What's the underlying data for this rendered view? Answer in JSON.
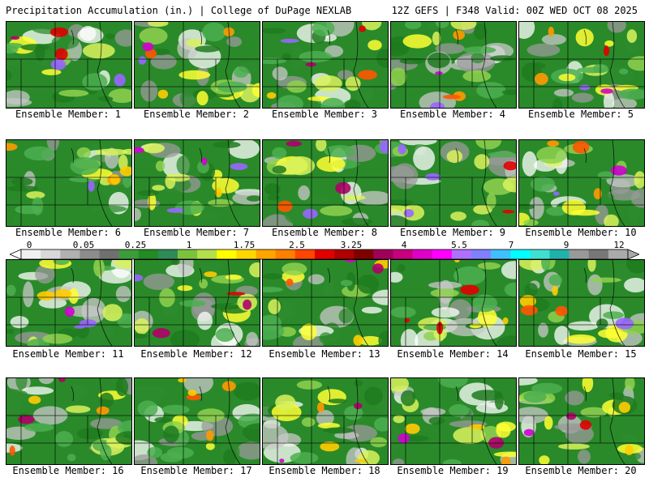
{
  "header": {
    "left": "Precipitation Accumulation (in.) | College of DuPage NEXLAB",
    "right": "12Z GEFS | F348 Valid: 00Z WED OCT 08 2025"
  },
  "members": [
    {
      "label": "Ensemble Member: 1"
    },
    {
      "label": "Ensemble Member: 2"
    },
    {
      "label": "Ensemble Member: 3"
    },
    {
      "label": "Ensemble Member: 4"
    },
    {
      "label": "Ensemble Member: 5"
    },
    {
      "label": "Ensemble Member: 6"
    },
    {
      "label": "Ensemble Member: 7"
    },
    {
      "label": "Ensemble Member: 8"
    },
    {
      "label": "Ensemble Member: 9"
    },
    {
      "label": "Ensemble Member: 10"
    },
    {
      "label": "Ensemble Member: 11"
    },
    {
      "label": "Ensemble Member: 12"
    },
    {
      "label": "Ensemble Member: 13"
    },
    {
      "label": "Ensemble Member: 14"
    },
    {
      "label": "Ensemble Member: 15"
    },
    {
      "label": "Ensemble Member: 16"
    },
    {
      "label": "Ensemble Member: 17"
    },
    {
      "label": "Ensemble Member: 18"
    },
    {
      "label": "Ensemble Member: 19"
    },
    {
      "label": "Ensemble Member: 20"
    }
  ],
  "legend": {
    "labels": [
      "0",
      "0.05",
      "0.25",
      "1",
      "1.75",
      "2.5",
      "3.25",
      "4",
      "5.5",
      "7",
      "9",
      "12"
    ],
    "colors": [
      "#f0f0f0",
      "#d8d8d8",
      "#b0b0b0",
      "#8c8c8c",
      "#707070",
      "#3c9c3c",
      "#228b22",
      "#2e8b57",
      "#7cc33c",
      "#b4e04c",
      "#ffff00",
      "#ffd700",
      "#ffa500",
      "#ff7f00",
      "#ff4500",
      "#e00000",
      "#b00000",
      "#800000",
      "#a0005a",
      "#c8007e",
      "#e000c8",
      "#ff00ff",
      "#b070ff",
      "#8080ff",
      "#40c0ff",
      "#00ffff",
      "#40e0d0",
      "#20b2aa",
      "#999999",
      "#777777",
      "#aaaaaa"
    ]
  }
}
